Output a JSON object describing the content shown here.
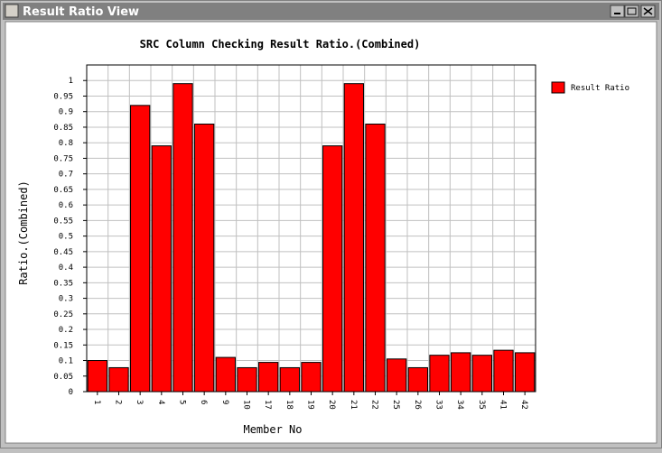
{
  "window": {
    "title": "Result Ratio View"
  },
  "chart_data": {
    "type": "bar",
    "title": "SRC Column Checking Result Ratio.(Combined)",
    "x_label": "Member No",
    "y_label": "Ratio.(Combined)",
    "categories": [
      "1",
      "2",
      "3",
      "4",
      "5",
      "6",
      "9",
      "10",
      "17",
      "18",
      "19",
      "20",
      "21",
      "22",
      "25",
      "26",
      "33",
      "34",
      "35",
      "41",
      "42"
    ],
    "series": [
      {
        "name": "Result Ratio",
        "color": "#ff0000",
        "values": [
          0.1,
          0.077,
          0.92,
          0.79,
          0.99,
          0.86,
          0.11,
          0.077,
          0.094,
          0.077,
          0.094,
          0.79,
          0.99,
          0.86,
          0.105,
          0.077,
          0.117,
          0.125,
          0.117,
          0.133,
          0.125
        ]
      }
    ],
    "ylim": [
      0,
      1.05
    ],
    "yticks": [
      0,
      0.05,
      0.1,
      0.15,
      0.2,
      0.25,
      0.3,
      0.35,
      0.4,
      0.45,
      0.5,
      0.55,
      0.6,
      0.65,
      0.7,
      0.75,
      0.8,
      0.85,
      0.9,
      0.95,
      1
    ],
    "grid": true,
    "legend": "right"
  }
}
